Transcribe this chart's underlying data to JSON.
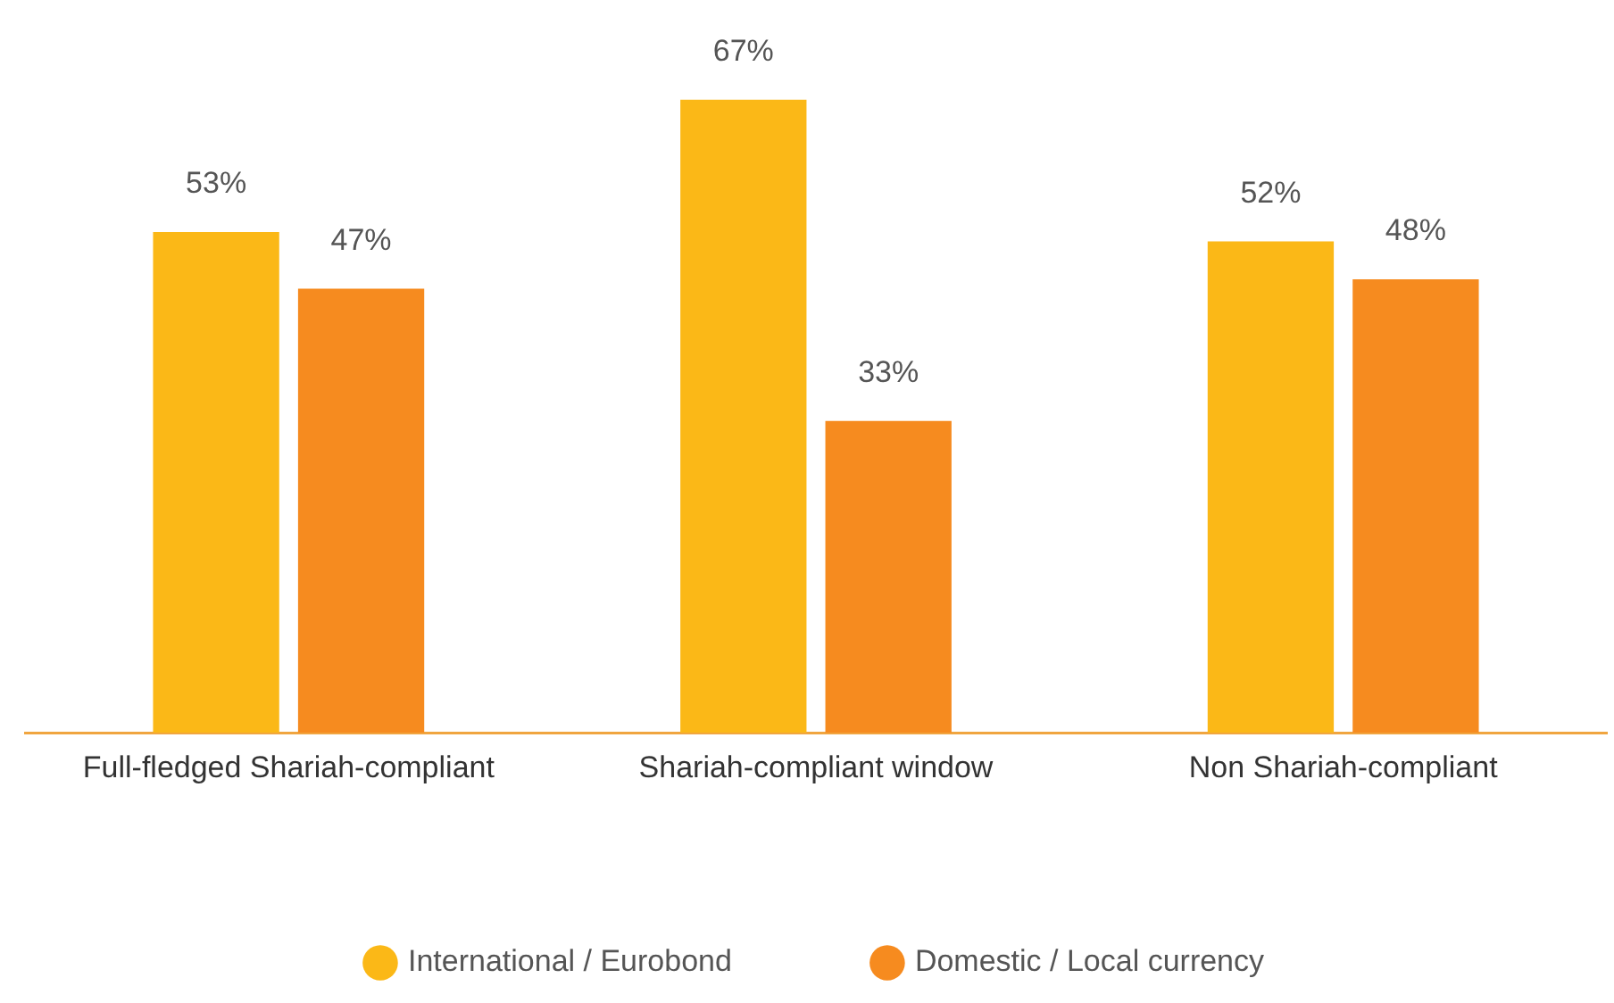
{
  "chart_data": {
    "type": "bar",
    "categories": [
      "Full-fledged Shariah-compliant",
      "Shariah-compliant window",
      "Non Shariah-compliant"
    ],
    "series": [
      {
        "name": "International / Eurobond",
        "color": "#fbb817",
        "values": [
          53,
          67,
          52
        ],
        "value_labels": [
          "53%",
          "67%",
          "52%"
        ]
      },
      {
        "name": "Domestic / Local currency",
        "color": "#f68b1f",
        "values": [
          47,
          33,
          48
        ],
        "value_labels": [
          "47%",
          "33%",
          "48%"
        ]
      }
    ],
    "legend": "bottom",
    "grid": false
  }
}
